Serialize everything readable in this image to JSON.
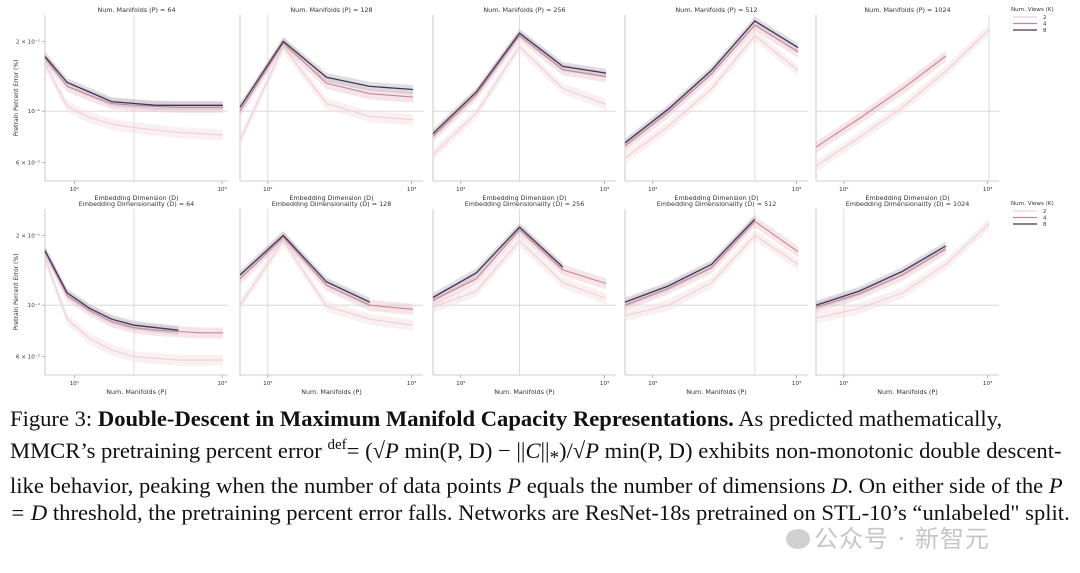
{
  "chart_data": [
    {
      "type": "line",
      "row": 0,
      "title": "Num. Manifolds (P) = 64",
      "xlabel": "Embedding Dimension (D)",
      "ylabel": "Pretrain Percent Error (%)",
      "x_scale": "log",
      "y_scale": "log",
      "xlim": [
        4,
        1200
      ],
      "ylim": [
        0.05,
        0.26
      ],
      "xticks": [
        {
          "value": 10,
          "label": "10¹"
        },
        {
          "value": 1000,
          "label": "10³"
        }
      ],
      "yticks": [
        {
          "value": 0.2,
          "label": "2 × 10⁻¹"
        },
        {
          "value": 0.1,
          "label": "10⁻¹"
        },
        {
          "value": 0.06,
          "label": "6 × 10⁻²"
        }
      ],
      "reference_lines": {
        "x": 64,
        "y": 0.1
      },
      "series": [
        {
          "name": "2",
          "x": [
            4,
            8,
            16,
            32,
            64,
            128,
            256,
            512,
            1024
          ],
          "y": [
            0.16,
            0.105,
            0.094,
            0.088,
            0.085,
            0.083,
            0.081,
            0.08,
            0.079
          ]
        },
        {
          "name": "4",
          "x": [
            4,
            8,
            16,
            32,
            64,
            128,
            256,
            512,
            1024
          ],
          "y": [
            0.17,
            0.128,
            0.117,
            0.108,
            0.106,
            0.105,
            0.104,
            0.104,
            0.104
          ]
        },
        {
          "name": "8",
          "x": [
            4,
            8,
            16,
            32,
            64,
            128,
            256,
            512,
            1024
          ],
          "y": [
            0.172,
            0.133,
            0.121,
            0.11,
            0.108,
            0.106,
            0.106,
            0.106,
            0.106
          ]
        }
      ]
    },
    {
      "type": "line",
      "row": 0,
      "title": "Num. Manifolds (P) = 128",
      "xlabel": "Embedding Dimension (D)",
      "ylabel": "",
      "x_scale": "log",
      "y_scale": "log",
      "xlim": [
        64,
        1200
      ],
      "ylim": [
        0.05,
        0.26
      ],
      "xticks": [
        {
          "value": 100,
          "label": "10²"
        },
        {
          "value": 1000,
          "label": "10³"
        }
      ],
      "yticks": [],
      "reference_lines": {
        "x": 100,
        "y": 0.1
      },
      "series": [
        {
          "name": "2",
          "x": [
            64,
            128,
            256,
            512,
            1024
          ],
          "y": [
            0.075,
            0.19,
            0.108,
            0.095,
            0.092
          ]
        },
        {
          "name": "4",
          "x": [
            64,
            128,
            256,
            512,
            1024
          ],
          "y": [
            0.1,
            0.197,
            0.132,
            0.119,
            0.115
          ]
        },
        {
          "name": "8",
          "x": [
            64,
            128,
            256,
            512,
            1024
          ],
          "y": [
            0.104,
            0.2,
            0.14,
            0.128,
            0.124
          ]
        }
      ]
    },
    {
      "type": "line",
      "row": 0,
      "title": "Num. Manifolds (P) = 256",
      "xlabel": "Embedding Dimension (D)",
      "ylabel": "",
      "x_scale": "log",
      "y_scale": "log",
      "xlim": [
        64,
        1200
      ],
      "ylim": [
        0.05,
        0.26
      ],
      "xticks": [
        {
          "value": 100,
          "label": "10²"
        },
        {
          "value": 1000,
          "label": "10³"
        }
      ],
      "yticks": [],
      "reference_lines": {
        "x": 256,
        "y": 0.1
      },
      "series": [
        {
          "name": "2",
          "x": [
            64,
            128,
            256,
            512,
            1024
          ],
          "y": [
            0.065,
            0.098,
            0.19,
            0.125,
            0.107
          ]
        },
        {
          "name": "4",
          "x": [
            64,
            128,
            256,
            512,
            1024
          ],
          "y": [
            0.078,
            0.118,
            0.212,
            0.151,
            0.141
          ]
        },
        {
          "name": "8",
          "x": [
            64,
            128,
            256,
            512,
            1024
          ],
          "y": [
            0.08,
            0.121,
            0.217,
            0.156,
            0.146
          ]
        }
      ]
    },
    {
      "type": "line",
      "row": 0,
      "title": "Num. Manifolds (P) = 512",
      "xlabel": "Embedding Dimension (D)",
      "ylabel": "",
      "x_scale": "log",
      "y_scale": "log",
      "xlim": [
        64,
        1200
      ],
      "ylim": [
        0.05,
        0.26
      ],
      "xticks": [
        {
          "value": 100,
          "label": "10²"
        },
        {
          "value": 1000,
          "label": "10³"
        }
      ],
      "yticks": [],
      "reference_lines": {
        "x": 512,
        "y": 0.1
      },
      "series": [
        {
          "name": "2",
          "x": [
            64,
            128,
            256,
            512,
            1024
          ],
          "y": [
            0.063,
            0.086,
            0.125,
            0.212,
            0.15
          ]
        },
        {
          "name": "4",
          "x": [
            64,
            128,
            256,
            512,
            1024
          ],
          "y": [
            0.071,
            0.099,
            0.145,
            0.235,
            0.18
          ]
        },
        {
          "name": "8",
          "x": [
            64,
            128,
            256,
            512,
            1024
          ],
          "y": [
            0.073,
            0.102,
            0.15,
            0.245,
            0.188
          ]
        }
      ]
    },
    {
      "type": "line",
      "row": 0,
      "title": "Num. Manifolds (P) = 1024",
      "xlabel": "Embedding Dimension (D)",
      "ylabel": "",
      "x_scale": "log",
      "y_scale": "log",
      "xlim": [
        64,
        1200
      ],
      "ylim": [
        0.05,
        0.26
      ],
      "xticks": [
        {
          "value": 100,
          "label": "10²"
        },
        {
          "value": 1000,
          "label": "10³"
        }
      ],
      "yticks": [],
      "reference_lines": {
        "x": 1024,
        "y": 0.1
      },
      "legend": {
        "title": "Num. Views (K)",
        "placement": "outside-right",
        "entries": [
          "2",
          "4",
          "8"
        ]
      },
      "series": [
        {
          "name": "2",
          "x": [
            64,
            128,
            256,
            512,
            1024
          ],
          "y": [
            0.058,
            0.077,
            0.104,
            0.149,
            0.225
          ]
        },
        {
          "name": "4",
          "x": [
            64,
            128,
            256,
            512
          ],
          "y": [
            0.07,
            0.093,
            0.125,
            0.173
          ]
        },
        {
          "name": "8",
          "x": [],
          "y": []
        }
      ]
    },
    {
      "type": "line",
      "row": 1,
      "title": "Embedding Dimensionality (D) = 64",
      "xlabel": "Num. Manifolds (P)",
      "ylabel": "Pretrain Percent Error (%)",
      "x_scale": "log",
      "y_scale": "log",
      "xlim": [
        4,
        1200
      ],
      "ylim": [
        0.05,
        0.26
      ],
      "xticks": [
        {
          "value": 10,
          "label": "10¹"
        },
        {
          "value": 1000,
          "label": "10³"
        }
      ],
      "yticks": [
        {
          "value": 0.2,
          "label": "2 × 10⁻¹"
        },
        {
          "value": 0.1,
          "label": "10⁻¹"
        },
        {
          "value": 0.06,
          "label": "6 × 10⁻²"
        }
      ],
      "reference_lines": {
        "x": 64,
        "y": 0.1
      },
      "series": [
        {
          "name": "2",
          "x": [
            4,
            8,
            16,
            32,
            64,
            128,
            256,
            512,
            1024
          ],
          "y": [
            0.16,
            0.087,
            0.072,
            0.064,
            0.06,
            0.059,
            0.058,
            0.058,
            0.058
          ]
        },
        {
          "name": "4",
          "x": [
            4,
            8,
            16,
            32,
            64,
            128,
            256,
            512,
            1024
          ],
          "y": [
            0.17,
            0.11,
            0.095,
            0.085,
            0.08,
            0.078,
            0.077,
            0.076,
            0.076
          ]
        },
        {
          "name": "8",
          "x": [
            4,
            8,
            16,
            32,
            64,
            128,
            256
          ],
          "y": [
            0.172,
            0.113,
            0.097,
            0.087,
            0.082,
            0.08,
            0.078
          ]
        }
      ]
    },
    {
      "type": "line",
      "row": 1,
      "title": "Embedding Dimensionality (D) = 128",
      "xlabel": "Num. Manifolds (P)",
      "ylabel": "",
      "x_scale": "log",
      "y_scale": "log",
      "xlim": [
        64,
        1200
      ],
      "ylim": [
        0.05,
        0.26
      ],
      "xticks": [
        {
          "value": 100,
          "label": "10²"
        },
        {
          "value": 1000,
          "label": "10³"
        }
      ],
      "yticks": [],
      "reference_lines": {
        "x": 100,
        "y": 0.1
      },
      "series": [
        {
          "name": "2",
          "x": [
            64,
            128,
            256,
            512,
            1024
          ],
          "y": [
            0.1,
            0.19,
            0.099,
            0.087,
            0.082
          ]
        },
        {
          "name": "4",
          "x": [
            64,
            128,
            256,
            512,
            1024
          ],
          "y": [
            0.13,
            0.197,
            0.122,
            0.1,
            0.096
          ]
        },
        {
          "name": "8",
          "x": [
            64,
            128,
            256,
            512
          ],
          "y": [
            0.135,
            0.2,
            0.126,
            0.103
          ]
        }
      ]
    },
    {
      "type": "line",
      "row": 1,
      "title": "Embedding Dimensionality (D) = 256",
      "xlabel": "Num. Manifolds (P)",
      "ylabel": "",
      "x_scale": "log",
      "y_scale": "log",
      "xlim": [
        64,
        1200
      ],
      "ylim": [
        0.05,
        0.26
      ],
      "xticks": [
        {
          "value": 100,
          "label": "10²"
        },
        {
          "value": 1000,
          "label": "10³"
        }
      ],
      "yticks": [],
      "reference_lines": {
        "x": 256,
        "y": 0.1
      },
      "series": [
        {
          "name": "2",
          "x": [
            64,
            128,
            256,
            512,
            1024
          ],
          "y": [
            0.098,
            0.115,
            0.19,
            0.125,
            0.107
          ]
        },
        {
          "name": "4",
          "x": [
            64,
            128,
            256,
            512,
            1024
          ],
          "y": [
            0.105,
            0.13,
            0.212,
            0.142,
            0.124
          ]
        },
        {
          "name": "8",
          "x": [
            64,
            128,
            256,
            512
          ],
          "y": [
            0.108,
            0.138,
            0.217,
            0.146
          ]
        }
      ]
    },
    {
      "type": "line",
      "row": 1,
      "title": "Embedding Dimensionality (D) = 512",
      "xlabel": "Num. Manifolds (P)",
      "ylabel": "",
      "x_scale": "log",
      "y_scale": "log",
      "xlim": [
        64,
        1200
      ],
      "ylim": [
        0.05,
        0.26
      ],
      "xticks": [
        {
          "value": 100,
          "label": "10²"
        },
        {
          "value": 1000,
          "label": "10³"
        }
      ],
      "yticks": [],
      "reference_lines": {
        "x": 512,
        "y": 0.1
      },
      "series": [
        {
          "name": "2",
          "x": [
            64,
            128,
            256,
            512,
            1024
          ],
          "y": [
            0.09,
            0.1,
            0.125,
            0.2,
            0.15
          ]
        },
        {
          "name": "4",
          "x": [
            64,
            128,
            256,
            512,
            1024
          ],
          "y": [
            0.1,
            0.118,
            0.145,
            0.23,
            0.17
          ]
        },
        {
          "name": "8",
          "x": [
            64,
            128,
            256,
            512
          ],
          "y": [
            0.103,
            0.121,
            0.15,
            0.235
          ]
        }
      ]
    },
    {
      "type": "line",
      "row": 1,
      "title": "Embedding Dimensionality (D) = 1024",
      "xlabel": "Num. Manifolds (P)",
      "ylabel": "",
      "x_scale": "log",
      "y_scale": "log",
      "xlim": [
        64,
        1200
      ],
      "ylim": [
        0.05,
        0.26
      ],
      "xticks": [
        {
          "value": 100,
          "label": "10²"
        },
        {
          "value": 1000,
          "label": "10³"
        }
      ],
      "yticks": [],
      "reference_lines": {
        "x": 100,
        "y": 0.1
      },
      "legend": {
        "title": "Num. Views (K)",
        "placement": "outside-right",
        "entries": [
          "2",
          "4",
          "8"
        ]
      },
      "series": [
        {
          "name": "2",
          "x": [
            64,
            128,
            256,
            512,
            1024
          ],
          "y": [
            0.088,
            0.097,
            0.113,
            0.15,
            0.225
          ]
        },
        {
          "name": "4",
          "x": [
            64,
            128,
            256,
            512
          ],
          "y": [
            0.098,
            0.112,
            0.135,
            0.175
          ]
        },
        {
          "name": "8",
          "x": [
            64,
            128,
            256,
            512
          ],
          "y": [
            0.1,
            0.115,
            0.14,
            0.18
          ]
        }
      ]
    }
  ],
  "series_colors": {
    "2": "#eccfd5",
    "4": "#c7869a",
    "8": "#3f3653"
  },
  "band_colors": {
    "2": "#f4dde2",
    "4": "#e8c3cd",
    "8": "#bdb8c6"
  },
  "caption": {
    "label": "Figure 3:",
    "bold_title": "Double-Descent in Maximum Manifold Capacity Representations.",
    "text_1": "As predicted mathematically, MMCR’s pretraining percent error",
    "def_mark": "def",
    "equals": "=",
    "formula_open": "(√",
    "formula_a": "P",
    "formula_b": "min(P, D)",
    "formula_minus": " − ||",
    "formula_c": "C",
    "formula_norm": "||",
    "formula_sub": "*",
    "formula_close": ")/√",
    "formula_d": "P",
    "formula_e": "min(P, D)",
    "text_2": "exhibits non-monotonic double descent-like behavior, peaking when the number of data points",
    "var_p": "P",
    "text_3": "equals the number of dimensions",
    "var_d": "D",
    "text_4": ". On either side of the",
    "threshold": "P = D",
    "text_5": "threshold, the pretraining percent error falls. Networks are ResNet-18s pretrained on STL-10’s “unlabeled\" split."
  },
  "watermark": {
    "text": "公众号 · 新智元"
  }
}
